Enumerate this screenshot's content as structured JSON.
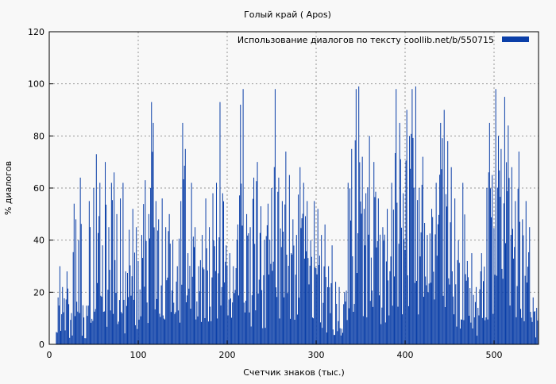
{
  "chart_data": {
    "type": "bar",
    "title": "Голый край ( Apos)",
    "xlabel": "Счетчик знаков (тыс.)",
    "ylabel": "% диалогов",
    "xlim": [
      0,
      550
    ],
    "ylim": [
      0,
      120
    ],
    "xticks": [
      0,
      100,
      200,
      300,
      400,
      500
    ],
    "yticks": [
      0,
      20,
      40,
      60,
      80,
      100,
      120
    ],
    "grid": true,
    "legend_position": "top-right",
    "series": [
      {
        "name": "Использование диалогов по тексту  coollib.net/b/550715",
        "color": "#0b3fa8",
        "x_step": 1,
        "x_start": 8,
        "peaks": [
          [
            10,
            18
          ],
          [
            12,
            30
          ],
          [
            15,
            22
          ],
          [
            20,
            28
          ],
          [
            25,
            12
          ],
          [
            28,
            54
          ],
          [
            30,
            48
          ],
          [
            33,
            40
          ],
          [
            35,
            64
          ],
          [
            38,
            15
          ],
          [
            45,
            55
          ],
          [
            50,
            60
          ],
          [
            53,
            73
          ],
          [
            57,
            62
          ],
          [
            60,
            38
          ],
          [
            63,
            70
          ],
          [
            67,
            45
          ],
          [
            70,
            62
          ],
          [
            73,
            66
          ],
          [
            76,
            50
          ],
          [
            80,
            56
          ],
          [
            83,
            62
          ],
          [
            86,
            28
          ],
          [
            90,
            44
          ],
          [
            94,
            52
          ],
          [
            98,
            45
          ],
          [
            100,
            32
          ],
          [
            104,
            42
          ],
          [
            108,
            63
          ],
          [
            112,
            50
          ],
          [
            115,
            93
          ],
          [
            117,
            85
          ],
          [
            120,
            55
          ],
          [
            123,
            48
          ],
          [
            127,
            56
          ],
          [
            131,
            45
          ],
          [
            135,
            50
          ],
          [
            139,
            40
          ],
          [
            144,
            30
          ],
          [
            148,
            55
          ],
          [
            150,
            85
          ],
          [
            153,
            75
          ],
          [
            156,
            35
          ],
          [
            160,
            62
          ],
          [
            164,
            45
          ],
          [
            168,
            30
          ],
          [
            172,
            42
          ],
          [
            176,
            56
          ],
          [
            180,
            45
          ],
          [
            184,
            58
          ],
          [
            188,
            62
          ],
          [
            192,
            93
          ],
          [
            195,
            58
          ],
          [
            199,
            38
          ],
          [
            203,
            35
          ],
          [
            207,
            30
          ],
          [
            212,
            46
          ],
          [
            215,
            92
          ],
          [
            218,
            98
          ],
          [
            222,
            50
          ],
          [
            226,
            45
          ],
          [
            230,
            64
          ],
          [
            234,
            70
          ],
          [
            238,
            53
          ],
          [
            242,
            40
          ],
          [
            246,
            54
          ],
          [
            250,
            60
          ],
          [
            254,
            98
          ],
          [
            258,
            64
          ],
          [
            262,
            55
          ],
          [
            266,
            74
          ],
          [
            270,
            65
          ],
          [
            274,
            48
          ],
          [
            278,
            42
          ],
          [
            282,
            68
          ],
          [
            286,
            62
          ],
          [
            290,
            55
          ],
          [
            294,
            40
          ],
          [
            298,
            55
          ],
          [
            302,
            52
          ],
          [
            306,
            42
          ],
          [
            310,
            46
          ],
          [
            314,
            30
          ],
          [
            318,
            38
          ],
          [
            322,
            24
          ],
          [
            326,
            22
          ],
          [
            332,
            20
          ],
          [
            336,
            62
          ],
          [
            340,
            75
          ],
          [
            345,
            98
          ],
          [
            348,
            99
          ],
          [
            352,
            72
          ],
          [
            356,
            58
          ],
          [
            360,
            80
          ],
          [
            365,
            70
          ],
          [
            370,
            56
          ],
          [
            375,
            45
          ],
          [
            380,
            52
          ],
          [
            385,
            62
          ],
          [
            390,
            98
          ],
          [
            394,
            85
          ],
          [
            398,
            58
          ],
          [
            402,
            90
          ],
          [
            405,
            80
          ],
          [
            408,
            98
          ],
          [
            412,
            99
          ],
          [
            416,
            60
          ],
          [
            420,
            72
          ],
          [
            425,
            42
          ],
          [
            430,
            52
          ],
          [
            435,
            62
          ],
          [
            440,
            85
          ],
          [
            444,
            90
          ],
          [
            448,
            78
          ],
          [
            452,
            68
          ],
          [
            456,
            56
          ],
          [
            460,
            40
          ],
          [
            465,
            62
          ],
          [
            470,
            32
          ],
          [
            475,
            35
          ],
          [
            480,
            22
          ],
          [
            486,
            35
          ],
          [
            492,
            60
          ],
          [
            495,
            85
          ],
          [
            498,
            65
          ],
          [
            502,
            98
          ],
          [
            505,
            80
          ],
          [
            508,
            75
          ],
          [
            512,
            95
          ],
          [
            516,
            84
          ],
          [
            520,
            68
          ],
          [
            524,
            55
          ],
          [
            528,
            74
          ],
          [
            532,
            48
          ],
          [
            536,
            55
          ],
          [
            540,
            45
          ],
          [
            544,
            18
          ],
          [
            548,
            14
          ],
          [
            550,
            10
          ]
        ],
        "notes_on_x": "bars every 1 unit from x_start to 550; peaks list local maxima (x, value)"
      }
    ]
  }
}
